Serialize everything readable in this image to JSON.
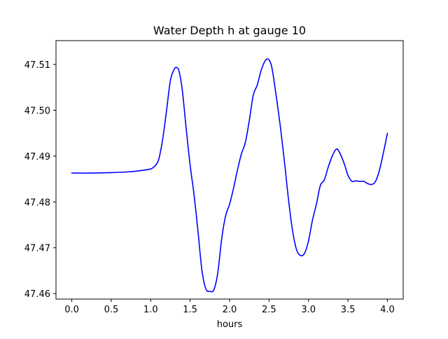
{
  "chart_data": {
    "type": "line",
    "title": "Water Depth h at gauge 10",
    "xlabel": "hours",
    "ylabel": "",
    "xlim": [
      -0.2,
      4.2
    ],
    "ylim": [
      47.4588,
      47.5152
    ],
    "xticks": [
      0.0,
      0.5,
      1.0,
      1.5,
      2.0,
      2.5,
      3.0,
      3.5,
      4.0
    ],
    "xtick_labels": [
      "0.0",
      "0.5",
      "1.0",
      "1.5",
      "2.0",
      "2.5",
      "3.0",
      "3.5",
      "4.0"
    ],
    "yticks": [
      47.46,
      47.47,
      47.48,
      47.49,
      47.5,
      47.51
    ],
    "ytick_labels": [
      "47.46",
      "47.47",
      "47.48",
      "47.49",
      "47.50",
      "47.51"
    ],
    "grid": false,
    "legend": "none",
    "series": [
      {
        "color": "#0000ff",
        "x": [
          0.0,
          0.25,
          0.5,
          0.75,
          0.9,
          1.0,
          1.05,
          1.1,
          1.15,
          1.2,
          1.25,
          1.3,
          1.33,
          1.36,
          1.4,
          1.45,
          1.5,
          1.55,
          1.6,
          1.65,
          1.7,
          1.75,
          1.8,
          1.85,
          1.9,
          1.95,
          2.0,
          2.05,
          2.1,
          2.15,
          2.2,
          2.25,
          2.3,
          2.35,
          2.4,
          2.45,
          2.48,
          2.5,
          2.53,
          2.56,
          2.6,
          2.65,
          2.7,
          2.75,
          2.8,
          2.85,
          2.9,
          2.95,
          3.0,
          3.05,
          3.1,
          3.15,
          3.2,
          3.25,
          3.3,
          3.35,
          3.38,
          3.42,
          3.46,
          3.5,
          3.55,
          3.6,
          3.65,
          3.7,
          3.75,
          3.8,
          3.85,
          3.9,
          3.95,
          4.0
        ],
        "y": [
          47.4863,
          47.4863,
          47.4864,
          47.4866,
          47.4869,
          47.4872,
          47.4878,
          47.4892,
          47.4935,
          47.4998,
          47.5065,
          47.509,
          47.5093,
          47.5085,
          47.5045,
          47.496,
          47.488,
          47.4815,
          47.4735,
          47.465,
          47.461,
          47.4605,
          47.4608,
          47.4645,
          47.472,
          47.477,
          47.4795,
          47.483,
          47.487,
          47.4905,
          47.493,
          47.4978,
          47.5033,
          47.5055,
          47.5087,
          47.5108,
          47.5112,
          47.511,
          47.5098,
          47.5068,
          47.502,
          47.4955,
          47.488,
          47.48,
          47.4735,
          47.4695,
          47.4683,
          47.4688,
          47.4715,
          47.476,
          47.4795,
          47.4836,
          47.4848,
          47.4876,
          47.49,
          47.4915,
          47.4912,
          47.4898,
          47.488,
          47.4858,
          47.4845,
          47.4846,
          47.4845,
          47.4845,
          47.484,
          47.4838,
          47.4845,
          47.487,
          47.4908,
          47.495
        ]
      }
    ]
  }
}
